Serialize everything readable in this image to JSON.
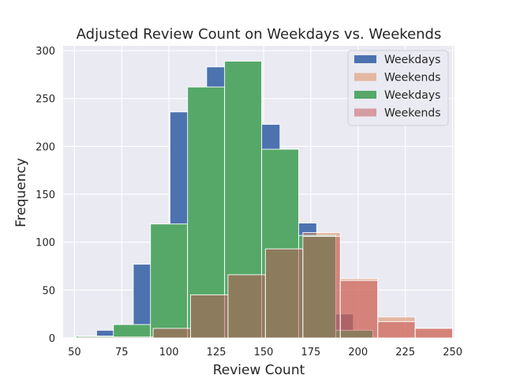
{
  "chart_data": {
    "type": "bar",
    "title": "Adjusted Review Count on Weekdays vs. Weekends",
    "xlabel": "Review Count",
    "ylabel": "Frequency",
    "xlim": [
      44,
      251
    ],
    "ylim": [
      0,
      305
    ],
    "xticks": [
      50,
      75,
      100,
      125,
      150,
      175,
      200,
      225,
      250
    ],
    "yticks": [
      0,
      50,
      100,
      150,
      200,
      250,
      300
    ],
    "grid": true,
    "legend_position": "top-right",
    "series": [
      {
        "name": "Weekdays",
        "color": "#4c72b0",
        "alpha": 1.0,
        "bins": [
          {
            "x0": 52,
            "x1": 61.7,
            "count": 2
          },
          {
            "x0": 61.7,
            "x1": 71.4,
            "count": 8
          },
          {
            "x0": 71.4,
            "x1": 81.1,
            "count": 2
          },
          {
            "x0": 81.1,
            "x1": 90.8,
            "count": 77
          },
          {
            "x0": 90.8,
            "x1": 100.5,
            "count": 115
          },
          {
            "x0": 100.5,
            "x1": 110.2,
            "count": 236
          },
          {
            "x0": 110.2,
            "x1": 119.9,
            "count": 260
          },
          {
            "x0": 119.9,
            "x1": 129.6,
            "count": 283
          },
          {
            "x0": 129.6,
            "x1": 139.3,
            "count": 289
          },
          {
            "x0": 139.3,
            "x1": 149.0,
            "count": 285
          },
          {
            "x0": 149.0,
            "x1": 158.7,
            "count": 223
          },
          {
            "x0": 158.7,
            "x1": 168.4,
            "count": 195
          },
          {
            "x0": 168.4,
            "x1": 178.1,
            "count": 120
          },
          {
            "x0": 178.1,
            "x1": 187.8,
            "count": 57
          },
          {
            "x0": 187.8,
            "x1": 197.5,
            "count": 25
          }
        ]
      },
      {
        "name": "Weekends",
        "color": "#dd8452",
        "alpha": 0.5,
        "bins": [
          {
            "x0": 52,
            "x1": 71.8,
            "count": 1
          },
          {
            "x0": 71.8,
            "x1": 91.6,
            "count": 2
          },
          {
            "x0": 91.6,
            "x1": 111.4,
            "count": 10
          },
          {
            "x0": 111.4,
            "x1": 131.2,
            "count": 45
          },
          {
            "x0": 131.2,
            "x1": 151.0,
            "count": 66
          },
          {
            "x0": 151.0,
            "x1": 170.8,
            "count": 93
          },
          {
            "x0": 170.8,
            "x1": 190.6,
            "count": 110
          },
          {
            "x0": 190.6,
            "x1": 210.4,
            "count": 62
          },
          {
            "x0": 210.4,
            "x1": 230.2,
            "count": 22
          },
          {
            "x0": 230.2,
            "x1": 250,
            "count": 10
          }
        ]
      },
      {
        "name": "Weekdays",
        "color": "#55a868",
        "alpha": 1.0,
        "bins": [
          {
            "x0": 51,
            "x1": 70.6,
            "count": 2
          },
          {
            "x0": 70.6,
            "x1": 90.2,
            "count": 14
          },
          {
            "x0": 90.2,
            "x1": 109.8,
            "count": 119
          },
          {
            "x0": 109.8,
            "x1": 129.4,
            "count": 262
          },
          {
            "x0": 129.4,
            "x1": 149.0,
            "count": 289
          },
          {
            "x0": 149.0,
            "x1": 168.6,
            "count": 197
          },
          {
            "x0": 168.6,
            "x1": 188.2,
            "count": 107
          },
          {
            "x0": 188.2,
            "x1": 207.8,
            "count": 8
          }
        ]
      },
      {
        "name": "Weekends",
        "color": "#c44e52",
        "alpha": 0.5,
        "bins": [
          {
            "x0": 52,
            "x1": 71.8,
            "count": 1
          },
          {
            "x0": 71.8,
            "x1": 91.6,
            "count": 1
          },
          {
            "x0": 91.6,
            "x1": 111.4,
            "count": 10
          },
          {
            "x0": 111.4,
            "x1": 131.2,
            "count": 45
          },
          {
            "x0": 131.2,
            "x1": 151.0,
            "count": 66
          },
          {
            "x0": 151.0,
            "x1": 170.8,
            "count": 93
          },
          {
            "x0": 170.8,
            "x1": 190.6,
            "count": 106
          },
          {
            "x0": 190.6,
            "x1": 210.4,
            "count": 60
          },
          {
            "x0": 210.4,
            "x1": 230.2,
            "count": 17
          },
          {
            "x0": 230.2,
            "x1": 250,
            "count": 10
          }
        ]
      }
    ]
  }
}
